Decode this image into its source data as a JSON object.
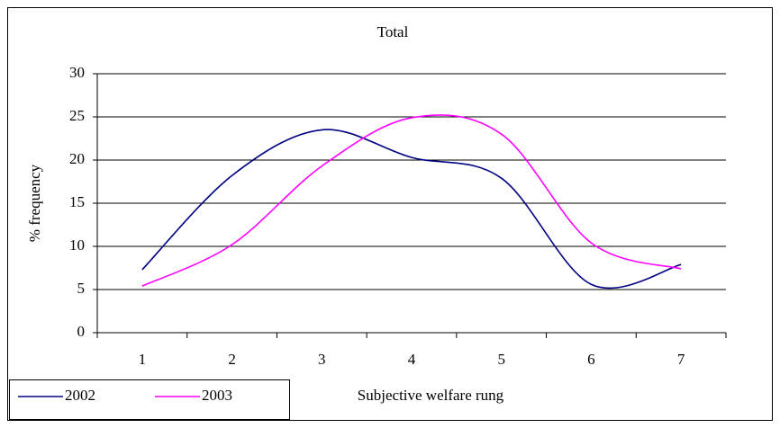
{
  "chart_data": {
    "type": "line",
    "title": "Total",
    "x_label": "Subjective welfare rung",
    "y_label": "% frequency",
    "categories": [
      "1",
      "2",
      "3",
      "4",
      "5",
      "6",
      "7"
    ],
    "series": [
      {
        "name": "2002",
        "color": "#000080",
        "values": [
          7.3,
          18.2,
          23.5,
          20.3,
          17.9,
          5.6,
          7.9
        ]
      },
      {
        "name": "2003",
        "color": "#ff00ff",
        "values": [
          5.4,
          10.2,
          19.3,
          24.9,
          23.0,
          10.4,
          7.4
        ]
      }
    ],
    "ylim": [
      0,
      30
    ],
    "yticks": [
      0,
      5,
      10,
      15,
      20,
      25,
      30
    ],
    "grid": true,
    "smooth": true,
    "legend": "bottom-left"
  }
}
